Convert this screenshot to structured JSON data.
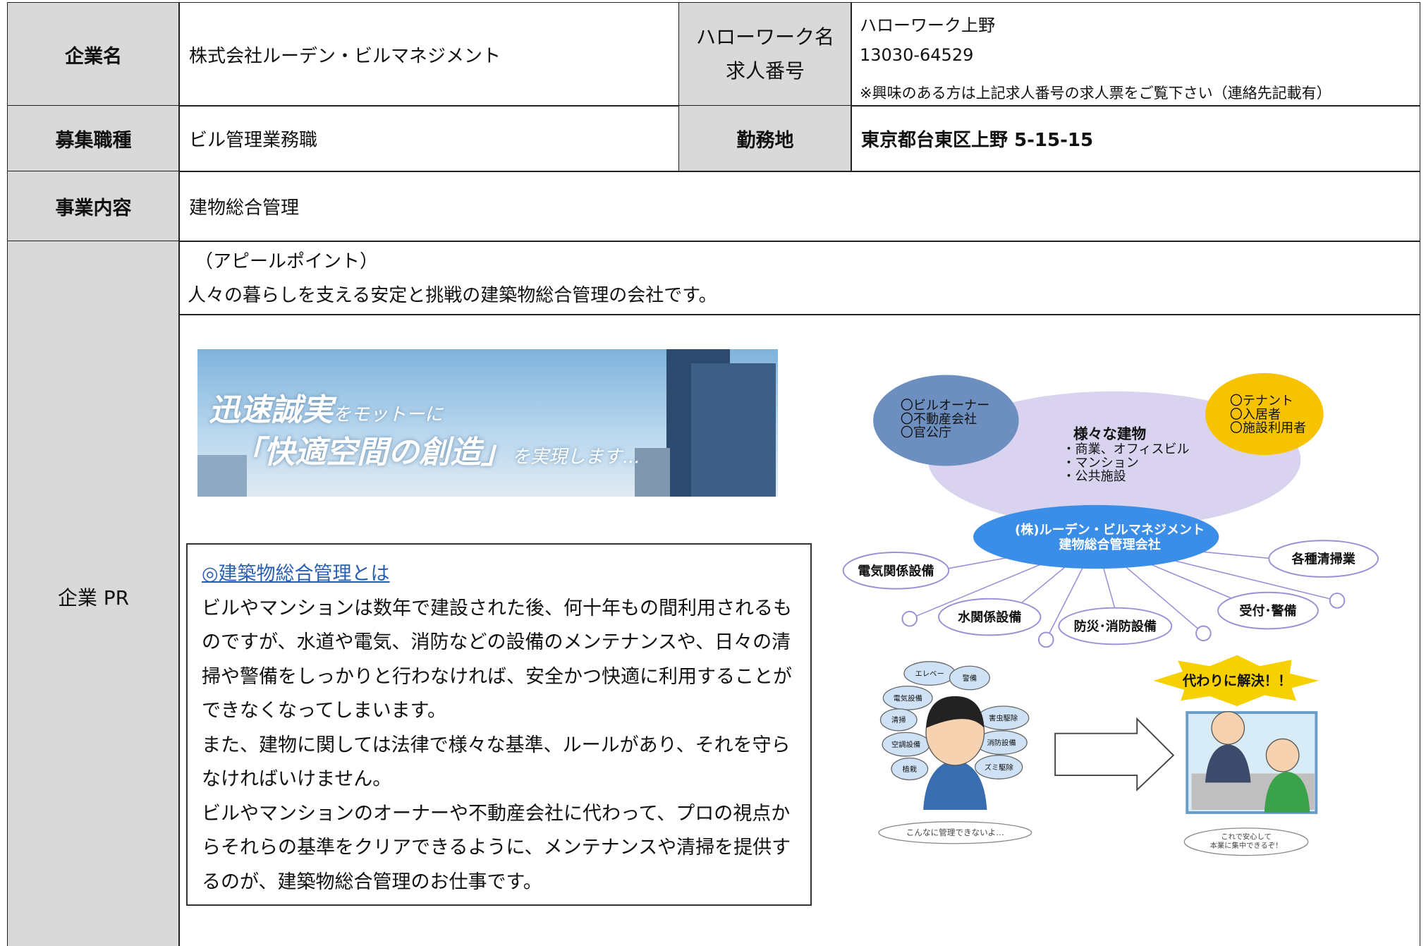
{
  "table": {
    "company": {
      "label": "企業名",
      "value": "株式会社ルーデン・ビルマネジメント"
    },
    "hellowork": {
      "label_lines": [
        "ハローワーク名",
        "求人番号"
      ],
      "name": "ハローワーク上野",
      "number": "13030-64529",
      "note": "※興味のある方は上記求人番号の求人票をご覧下さい（連絡先記載有）"
    },
    "job": {
      "label": "募集職種",
      "value": "ビル管理業務職"
    },
    "location": {
      "label": "勤務地",
      "value": "東京都台東区上野 5-15-15"
    },
    "business": {
      "label": "事業内容",
      "value": "建物総合管理"
    },
    "pr": {
      "label": "企業 PR",
      "appeal_heading": "（アピールポイント）",
      "appeal": "人々の暮らしを支える安定と挑戦の建築物総合管理の会社です。",
      "banner": {
        "line1_big": "迅速誠実",
        "line1_small": "をモットーに",
        "line2_big": "「快適空間の創造」",
        "line2_small": "を実現します..."
      },
      "box": {
        "heading": "◎建築物総合管理とは",
        "paragraphs": [
          "ビルやマンションは数年で建設された後、何十年もの間利用されるものですが、水道や電気、消防などの設備のメンテナンスや、日々の清掃や警備をしっかりと行わなければ、安全かつ快適に利用することができなくなってしまいます。",
          "また、建物に関しては法律で様々な基準、ルールがあり、それを守らなければいけません。",
          "ビルやマンションのオーナーや不動産会社に代わって、プロの視点からそれらの基準をクリアできるように、メンテナンスや清掃を提供するのが、建築物総合管理のお仕事です。"
        ]
      },
      "diagram": {
        "owners": [
          "〇ビルオーナー",
          "〇不動産会社",
          "〇官公庁"
        ],
        "tenants": [
          "〇テナント",
          "〇入居者",
          "〇施設利用者"
        ],
        "buildings_title": "様々な建物",
        "buildings": [
          "・商業、オフィスビル",
          "・マンション",
          "・公共施設"
        ],
        "center": [
          "(株)ルーデン・ビルマネジメント",
          "建物総合管理会社"
        ],
        "services": [
          "電気関係設備",
          "水関係設備",
          "防災･消防設備",
          "受付･警備",
          "各種清掃業"
        ],
        "worries": [
          "エレベー",
          "警備",
          "電気設備",
          "清掃",
          "害虫駆除",
          "空調設備",
          "消防設備",
          "植栽",
          "ズミ駆除"
        ],
        "worry_speech": "こんなに管理できないよ…",
        "solve": "代わりに解決！！",
        "relief_speech": [
          "これで安心して",
          "本業に集中できるぞ！"
        ]
      }
    }
  }
}
